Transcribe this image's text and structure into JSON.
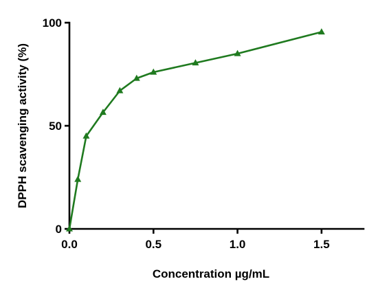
{
  "chart_data": {
    "type": "line",
    "title": "",
    "xlabel": "Concentration µg/mL",
    "ylabel": "DPPH scavenging activity (%)",
    "xlim": [
      0,
      1.75
    ],
    "ylim": [
      0,
      100
    ],
    "x_ticks": [
      0.0,
      0.5,
      1.0,
      1.5
    ],
    "x_tick_labels": [
      "0.0",
      "0.5",
      "1.0",
      "1.5"
    ],
    "y_ticks": [
      0,
      50,
      100
    ],
    "y_tick_labels": [
      "0",
      "50",
      "100"
    ],
    "grid": false,
    "legend": "none",
    "marker": "triangle",
    "color": "#1f7a1f",
    "series": [
      {
        "x": [
          0,
          0.05,
          0.1,
          0.2,
          0.3,
          0.4,
          0.5,
          0.75,
          1.0,
          1.5
        ],
        "y": [
          0,
          24,
          45,
          56.5,
          67,
          73,
          76,
          80.5,
          85,
          95.5
        ]
      }
    ]
  }
}
